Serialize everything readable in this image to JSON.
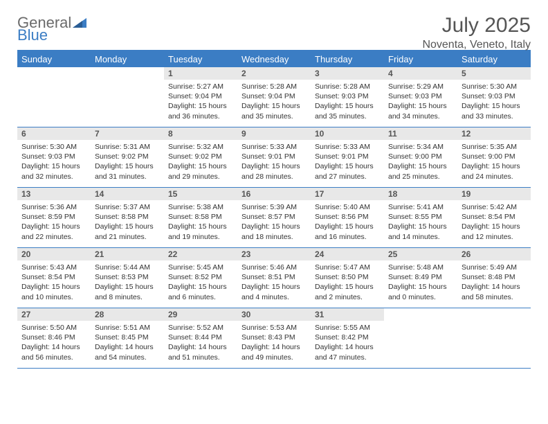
{
  "brand": {
    "part1": "General",
    "part2": "Blue"
  },
  "title": "July 2025",
  "location": "Noventa, Veneto, Italy",
  "weekdays": [
    "Sunday",
    "Monday",
    "Tuesday",
    "Wednesday",
    "Thursday",
    "Friday",
    "Saturday"
  ],
  "colors": {
    "accent": "#3b7dc4",
    "header_bg": "#3b7dc4",
    "header_text": "#ffffff",
    "daynum_bg": "#e8e8e8",
    "text": "#333333",
    "title_text": "#555555"
  },
  "weeks": [
    [
      {
        "empty": true
      },
      {
        "empty": true
      },
      {
        "day": "1",
        "sunrise": "Sunrise: 5:27 AM",
        "sunset": "Sunset: 9:04 PM",
        "daylight1": "Daylight: 15 hours",
        "daylight2": "and 36 minutes."
      },
      {
        "day": "2",
        "sunrise": "Sunrise: 5:28 AM",
        "sunset": "Sunset: 9:04 PM",
        "daylight1": "Daylight: 15 hours",
        "daylight2": "and 35 minutes."
      },
      {
        "day": "3",
        "sunrise": "Sunrise: 5:28 AM",
        "sunset": "Sunset: 9:03 PM",
        "daylight1": "Daylight: 15 hours",
        "daylight2": "and 35 minutes."
      },
      {
        "day": "4",
        "sunrise": "Sunrise: 5:29 AM",
        "sunset": "Sunset: 9:03 PM",
        "daylight1": "Daylight: 15 hours",
        "daylight2": "and 34 minutes."
      },
      {
        "day": "5",
        "sunrise": "Sunrise: 5:30 AM",
        "sunset": "Sunset: 9:03 PM",
        "daylight1": "Daylight: 15 hours",
        "daylight2": "and 33 minutes."
      }
    ],
    [
      {
        "day": "6",
        "sunrise": "Sunrise: 5:30 AM",
        "sunset": "Sunset: 9:03 PM",
        "daylight1": "Daylight: 15 hours",
        "daylight2": "and 32 minutes."
      },
      {
        "day": "7",
        "sunrise": "Sunrise: 5:31 AM",
        "sunset": "Sunset: 9:02 PM",
        "daylight1": "Daylight: 15 hours",
        "daylight2": "and 31 minutes."
      },
      {
        "day": "8",
        "sunrise": "Sunrise: 5:32 AM",
        "sunset": "Sunset: 9:02 PM",
        "daylight1": "Daylight: 15 hours",
        "daylight2": "and 29 minutes."
      },
      {
        "day": "9",
        "sunrise": "Sunrise: 5:33 AM",
        "sunset": "Sunset: 9:01 PM",
        "daylight1": "Daylight: 15 hours",
        "daylight2": "and 28 minutes."
      },
      {
        "day": "10",
        "sunrise": "Sunrise: 5:33 AM",
        "sunset": "Sunset: 9:01 PM",
        "daylight1": "Daylight: 15 hours",
        "daylight2": "and 27 minutes."
      },
      {
        "day": "11",
        "sunrise": "Sunrise: 5:34 AM",
        "sunset": "Sunset: 9:00 PM",
        "daylight1": "Daylight: 15 hours",
        "daylight2": "and 25 minutes."
      },
      {
        "day": "12",
        "sunrise": "Sunrise: 5:35 AM",
        "sunset": "Sunset: 9:00 PM",
        "daylight1": "Daylight: 15 hours",
        "daylight2": "and 24 minutes."
      }
    ],
    [
      {
        "day": "13",
        "sunrise": "Sunrise: 5:36 AM",
        "sunset": "Sunset: 8:59 PM",
        "daylight1": "Daylight: 15 hours",
        "daylight2": "and 22 minutes."
      },
      {
        "day": "14",
        "sunrise": "Sunrise: 5:37 AM",
        "sunset": "Sunset: 8:58 PM",
        "daylight1": "Daylight: 15 hours",
        "daylight2": "and 21 minutes."
      },
      {
        "day": "15",
        "sunrise": "Sunrise: 5:38 AM",
        "sunset": "Sunset: 8:58 PM",
        "daylight1": "Daylight: 15 hours",
        "daylight2": "and 19 minutes."
      },
      {
        "day": "16",
        "sunrise": "Sunrise: 5:39 AM",
        "sunset": "Sunset: 8:57 PM",
        "daylight1": "Daylight: 15 hours",
        "daylight2": "and 18 minutes."
      },
      {
        "day": "17",
        "sunrise": "Sunrise: 5:40 AM",
        "sunset": "Sunset: 8:56 PM",
        "daylight1": "Daylight: 15 hours",
        "daylight2": "and 16 minutes."
      },
      {
        "day": "18",
        "sunrise": "Sunrise: 5:41 AM",
        "sunset": "Sunset: 8:55 PM",
        "daylight1": "Daylight: 15 hours",
        "daylight2": "and 14 minutes."
      },
      {
        "day": "19",
        "sunrise": "Sunrise: 5:42 AM",
        "sunset": "Sunset: 8:54 PM",
        "daylight1": "Daylight: 15 hours",
        "daylight2": "and 12 minutes."
      }
    ],
    [
      {
        "day": "20",
        "sunrise": "Sunrise: 5:43 AM",
        "sunset": "Sunset: 8:54 PM",
        "daylight1": "Daylight: 15 hours",
        "daylight2": "and 10 minutes."
      },
      {
        "day": "21",
        "sunrise": "Sunrise: 5:44 AM",
        "sunset": "Sunset: 8:53 PM",
        "daylight1": "Daylight: 15 hours",
        "daylight2": "and 8 minutes."
      },
      {
        "day": "22",
        "sunrise": "Sunrise: 5:45 AM",
        "sunset": "Sunset: 8:52 PM",
        "daylight1": "Daylight: 15 hours",
        "daylight2": "and 6 minutes."
      },
      {
        "day": "23",
        "sunrise": "Sunrise: 5:46 AM",
        "sunset": "Sunset: 8:51 PM",
        "daylight1": "Daylight: 15 hours",
        "daylight2": "and 4 minutes."
      },
      {
        "day": "24",
        "sunrise": "Sunrise: 5:47 AM",
        "sunset": "Sunset: 8:50 PM",
        "daylight1": "Daylight: 15 hours",
        "daylight2": "and 2 minutes."
      },
      {
        "day": "25",
        "sunrise": "Sunrise: 5:48 AM",
        "sunset": "Sunset: 8:49 PM",
        "daylight1": "Daylight: 15 hours",
        "daylight2": "and 0 minutes."
      },
      {
        "day": "26",
        "sunrise": "Sunrise: 5:49 AM",
        "sunset": "Sunset: 8:48 PM",
        "daylight1": "Daylight: 14 hours",
        "daylight2": "and 58 minutes."
      }
    ],
    [
      {
        "day": "27",
        "sunrise": "Sunrise: 5:50 AM",
        "sunset": "Sunset: 8:46 PM",
        "daylight1": "Daylight: 14 hours",
        "daylight2": "and 56 minutes."
      },
      {
        "day": "28",
        "sunrise": "Sunrise: 5:51 AM",
        "sunset": "Sunset: 8:45 PM",
        "daylight1": "Daylight: 14 hours",
        "daylight2": "and 54 minutes."
      },
      {
        "day": "29",
        "sunrise": "Sunrise: 5:52 AM",
        "sunset": "Sunset: 8:44 PM",
        "daylight1": "Daylight: 14 hours",
        "daylight2": "and 51 minutes."
      },
      {
        "day": "30",
        "sunrise": "Sunrise: 5:53 AM",
        "sunset": "Sunset: 8:43 PM",
        "daylight1": "Daylight: 14 hours",
        "daylight2": "and 49 minutes."
      },
      {
        "day": "31",
        "sunrise": "Sunrise: 5:55 AM",
        "sunset": "Sunset: 8:42 PM",
        "daylight1": "Daylight: 14 hours",
        "daylight2": "and 47 minutes."
      },
      {
        "empty": true
      },
      {
        "empty": true
      }
    ]
  ]
}
